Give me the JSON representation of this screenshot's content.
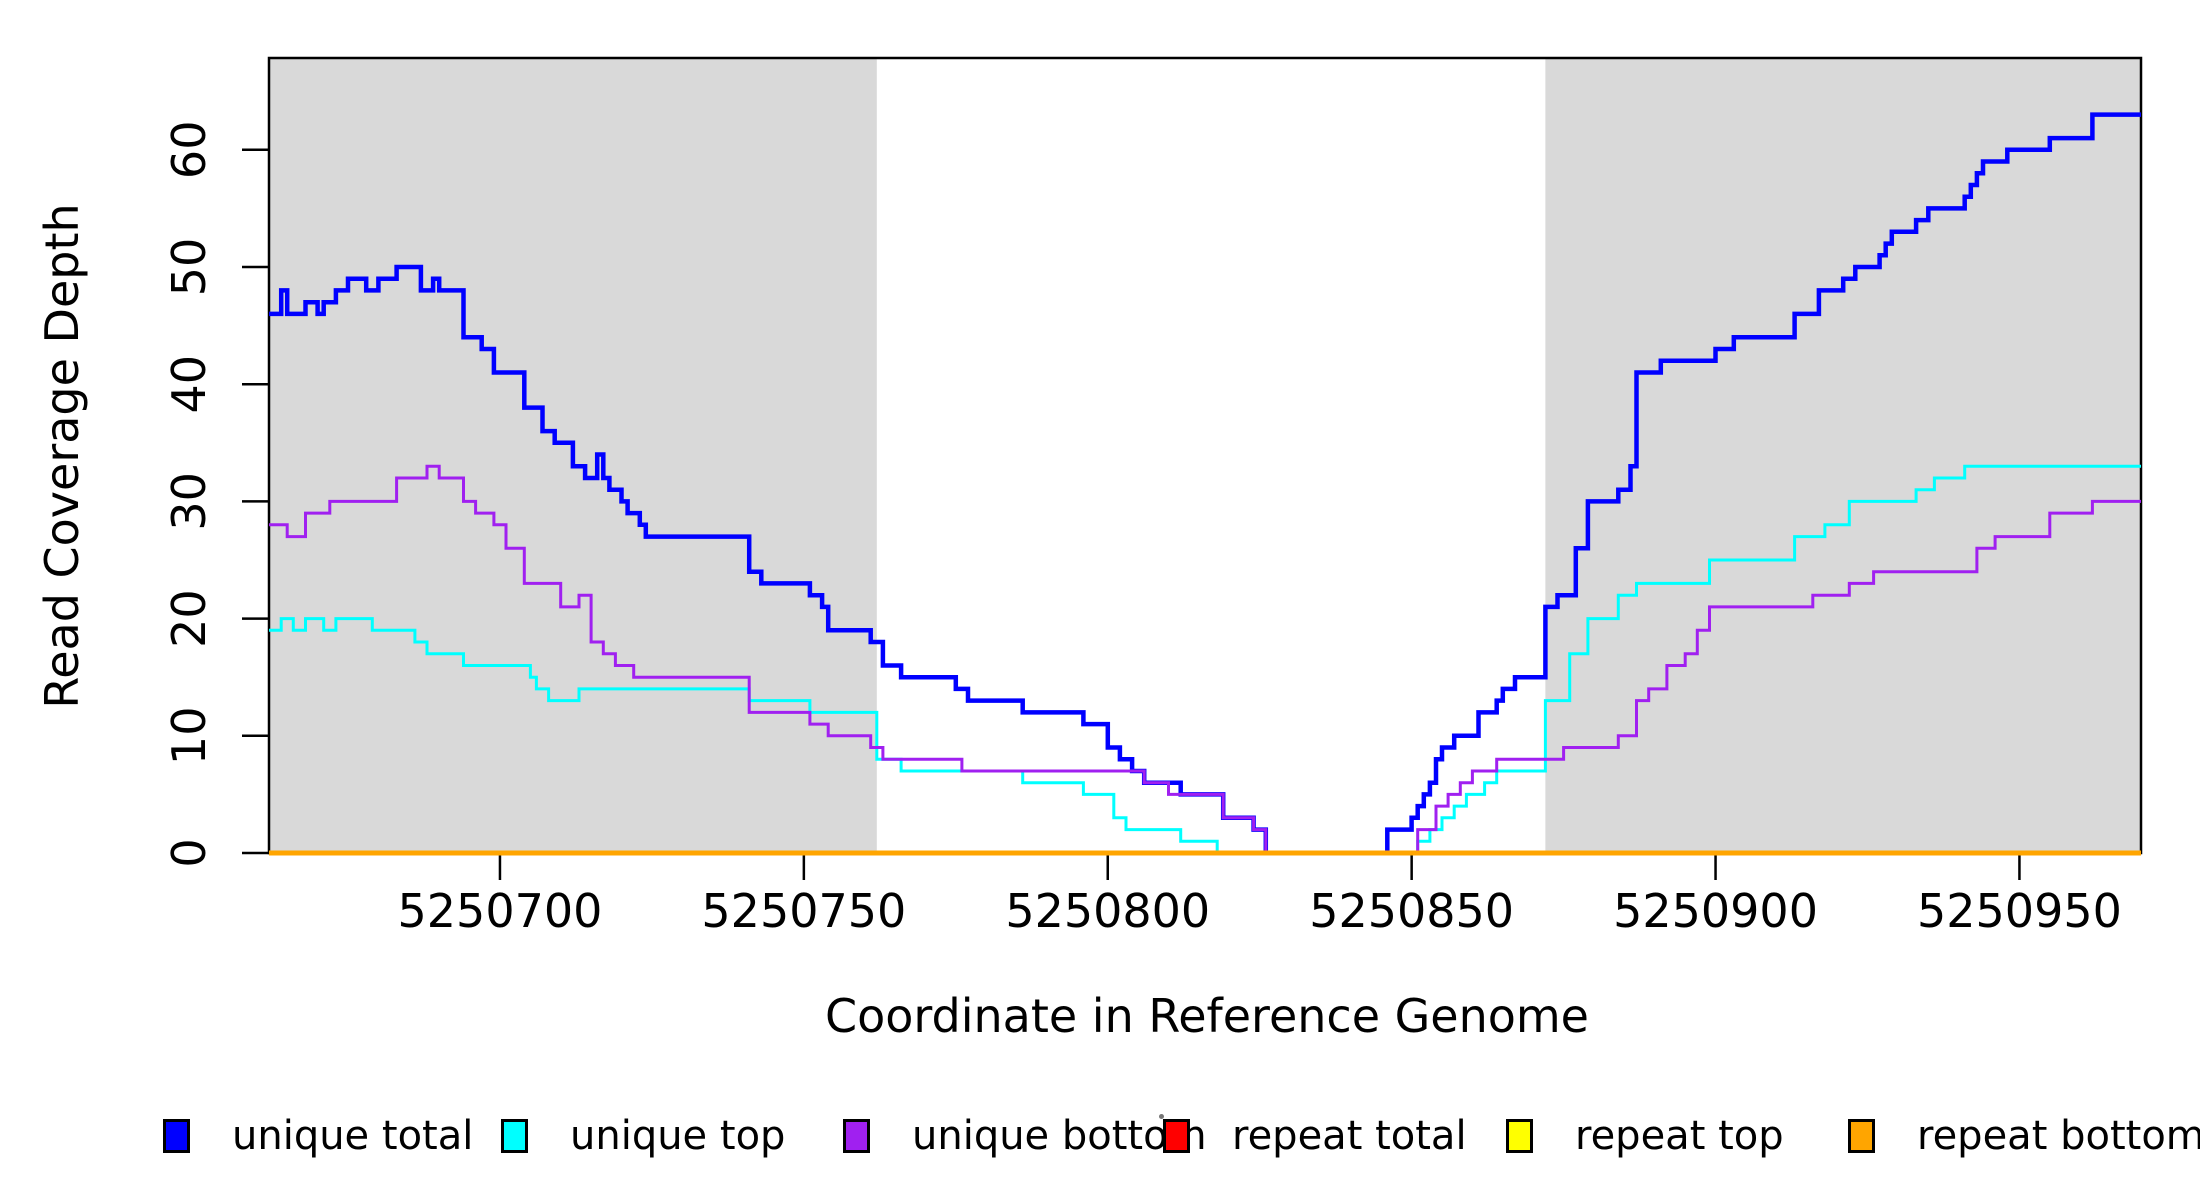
{
  "chart_data": {
    "type": "line",
    "subtype": "step",
    "title": "",
    "xlabel": "Coordinate in Reference Genome",
    "ylabel": "Read Coverage Depth",
    "xlim": [
      5250662,
      5250970
    ],
    "ylim": [
      0,
      67
    ],
    "x_ticks": [
      5250700,
      5250750,
      5250800,
      5250850,
      5250900,
      5250950
    ],
    "y_ticks": [
      0,
      10,
      20,
      30,
      40,
      50,
      60
    ],
    "grid": false,
    "legend_position": "bottom",
    "background_color": "#ffffff",
    "shaded_regions": [
      {
        "x0": 5250662,
        "x1": 5250762,
        "color": "#d9d9d9"
      },
      {
        "x0": 5250872,
        "x1": 5250970,
        "color": "#d9d9d9"
      }
    ],
    "series": [
      {
        "name": "unique total",
        "color": "#0000ff",
        "line_width": 4.5,
        "steps": [
          [
            5250662,
            46
          ],
          [
            5250664,
            48
          ],
          [
            5250665,
            46
          ],
          [
            5250668,
            47
          ],
          [
            5250670,
            46
          ],
          [
            5250671,
            47
          ],
          [
            5250673,
            48
          ],
          [
            5250675,
            49
          ],
          [
            5250678,
            48
          ],
          [
            5250680,
            49
          ],
          [
            5250683,
            50
          ],
          [
            5250687,
            48
          ],
          [
            5250689,
            49
          ],
          [
            5250690,
            48
          ],
          [
            5250694,
            44
          ],
          [
            5250697,
            43
          ],
          [
            5250699,
            41
          ],
          [
            5250704,
            38
          ],
          [
            5250707,
            36
          ],
          [
            5250709,
            35
          ],
          [
            5250712,
            33
          ],
          [
            5250714,
            32
          ],
          [
            5250716,
            34
          ],
          [
            5250717,
            32
          ],
          [
            5250718,
            31
          ],
          [
            5250720,
            30
          ],
          [
            5250721,
            29
          ],
          [
            5250723,
            28
          ],
          [
            5250724,
            27
          ],
          [
            5250741,
            24
          ],
          [
            5250743,
            23
          ],
          [
            5250751,
            22
          ],
          [
            5250753,
            21
          ],
          [
            5250754,
            19
          ],
          [
            5250761,
            18
          ],
          [
            5250763,
            16
          ],
          [
            5250766,
            15
          ],
          [
            5250775,
            14
          ],
          [
            5250777,
            13
          ],
          [
            5250786,
            12
          ],
          [
            5250796,
            11
          ],
          [
            5250800,
            9
          ],
          [
            5250802,
            8
          ],
          [
            5250804,
            7
          ],
          [
            5250806,
            6
          ],
          [
            5250812,
            5
          ],
          [
            5250819,
            3
          ],
          [
            5250824,
            2
          ],
          [
            5250826,
            0
          ],
          [
            5250846,
            2
          ],
          [
            5250850,
            3
          ],
          [
            5250851,
            4
          ],
          [
            5250852,
            5
          ],
          [
            5250853,
            6
          ],
          [
            5250854,
            8
          ],
          [
            5250855,
            9
          ],
          [
            5250857,
            10
          ],
          [
            5250861,
            12
          ],
          [
            5250864,
            13
          ],
          [
            5250865,
            14
          ],
          [
            5250867,
            15
          ],
          [
            5250872,
            21
          ],
          [
            5250874,
            22
          ],
          [
            5250877,
            26
          ],
          [
            5250879,
            30
          ],
          [
            5250884,
            31
          ],
          [
            5250886,
            33
          ],
          [
            5250887,
            41
          ],
          [
            5250891,
            42
          ],
          [
            5250900,
            43
          ],
          [
            5250903,
            44
          ],
          [
            5250913,
            46
          ],
          [
            5250917,
            48
          ],
          [
            5250921,
            49
          ],
          [
            5250923,
            50
          ],
          [
            5250927,
            51
          ],
          [
            5250928,
            52
          ],
          [
            5250929,
            53
          ],
          [
            5250933,
            54
          ],
          [
            5250935,
            55
          ],
          [
            5250941,
            56
          ],
          [
            5250942,
            57
          ],
          [
            5250943,
            58
          ],
          [
            5250944,
            59
          ],
          [
            5250948,
            60
          ],
          [
            5250955,
            61
          ],
          [
            5250962,
            63
          ]
        ]
      },
      {
        "name": "unique top",
        "color": "#00ffff",
        "line_width": 3,
        "steps": [
          [
            5250662,
            19
          ],
          [
            5250664,
            20
          ],
          [
            5250666,
            19
          ],
          [
            5250668,
            20
          ],
          [
            5250671,
            19
          ],
          [
            5250673,
            20
          ],
          [
            5250679,
            19
          ],
          [
            5250686,
            18
          ],
          [
            5250688,
            17
          ],
          [
            5250694,
            16
          ],
          [
            5250705,
            15
          ],
          [
            5250706,
            14
          ],
          [
            5250708,
            13
          ],
          [
            5250713,
            14
          ],
          [
            5250741,
            13
          ],
          [
            5250751,
            12
          ],
          [
            5250762,
            8
          ],
          [
            5250766,
            7
          ],
          [
            5250786,
            6
          ],
          [
            5250796,
            5
          ],
          [
            5250801,
            3
          ],
          [
            5250803,
            2
          ],
          [
            5250812,
            1
          ],
          [
            5250818,
            0
          ],
          [
            5250851,
            1
          ],
          [
            5250853,
            2
          ],
          [
            5250855,
            3
          ],
          [
            5250857,
            4
          ],
          [
            5250859,
            5
          ],
          [
            5250862,
            6
          ],
          [
            5250864,
            7
          ],
          [
            5250872,
            13
          ],
          [
            5250876,
            17
          ],
          [
            5250879,
            20
          ],
          [
            5250884,
            22
          ],
          [
            5250887,
            23
          ],
          [
            5250899,
            25
          ],
          [
            5250913,
            27
          ],
          [
            5250918,
            28
          ],
          [
            5250922,
            30
          ],
          [
            5250933,
            31
          ],
          [
            5250936,
            32
          ],
          [
            5250941,
            33
          ]
        ]
      },
      {
        "name": "unique bottom",
        "color": "#a020f0",
        "line_width": 3,
        "steps": [
          [
            5250662,
            28
          ],
          [
            5250665,
            27
          ],
          [
            5250668,
            29
          ],
          [
            5250672,
            30
          ],
          [
            5250683,
            32
          ],
          [
            5250688,
            33
          ],
          [
            5250690,
            32
          ],
          [
            5250694,
            30
          ],
          [
            5250696,
            29
          ],
          [
            5250699,
            28
          ],
          [
            5250701,
            26
          ],
          [
            5250704,
            23
          ],
          [
            5250710,
            21
          ],
          [
            5250713,
            22
          ],
          [
            5250715,
            18
          ],
          [
            5250717,
            17
          ],
          [
            5250719,
            16
          ],
          [
            5250722,
            15
          ],
          [
            5250741,
            12
          ],
          [
            5250751,
            11
          ],
          [
            5250754,
            10
          ],
          [
            5250761,
            9
          ],
          [
            5250763,
            8
          ],
          [
            5250776,
            7
          ],
          [
            5250806,
            6
          ],
          [
            5250810,
            5
          ],
          [
            5250819,
            3
          ],
          [
            5250824,
            2
          ],
          [
            5250826,
            0
          ],
          [
            5250851,
            2
          ],
          [
            5250854,
            4
          ],
          [
            5250856,
            5
          ],
          [
            5250858,
            6
          ],
          [
            5250860,
            7
          ],
          [
            5250864,
            8
          ],
          [
            5250875,
            9
          ],
          [
            5250884,
            10
          ],
          [
            5250887,
            13
          ],
          [
            5250889,
            14
          ],
          [
            5250892,
            16
          ],
          [
            5250895,
            17
          ],
          [
            5250897,
            19
          ],
          [
            5250899,
            21
          ],
          [
            5250916,
            22
          ],
          [
            5250922,
            23
          ],
          [
            5250926,
            24
          ],
          [
            5250943,
            26
          ],
          [
            5250946,
            27
          ],
          [
            5250955,
            29
          ],
          [
            5250962,
            30
          ]
        ]
      },
      {
        "name": "repeat total",
        "color": "#ff0000",
        "line_width": 4,
        "steps": [
          [
            5250662,
            0
          ]
        ]
      },
      {
        "name": "repeat top",
        "color": "#ffff00",
        "line_width": 4,
        "steps": [
          [
            5250662,
            0
          ]
        ]
      },
      {
        "name": "repeat bottom",
        "color": "#ffa500",
        "line_width": 5,
        "steps": [
          [
            5250662,
            0
          ]
        ]
      }
    ]
  },
  "legend": {
    "items": [
      {
        "label": "unique total",
        "color": "#0000ff"
      },
      {
        "label": "unique top",
        "color": "#00ffff"
      },
      {
        "label": "unique bottom",
        "color": "#a020f0"
      },
      {
        "label": "repeat total",
        "color": "#ff0000"
      },
      {
        "label": "repeat top",
        "color": "#ffff00"
      },
      {
        "label": "repeat bottom",
        "color": "#ffa500"
      }
    ]
  }
}
